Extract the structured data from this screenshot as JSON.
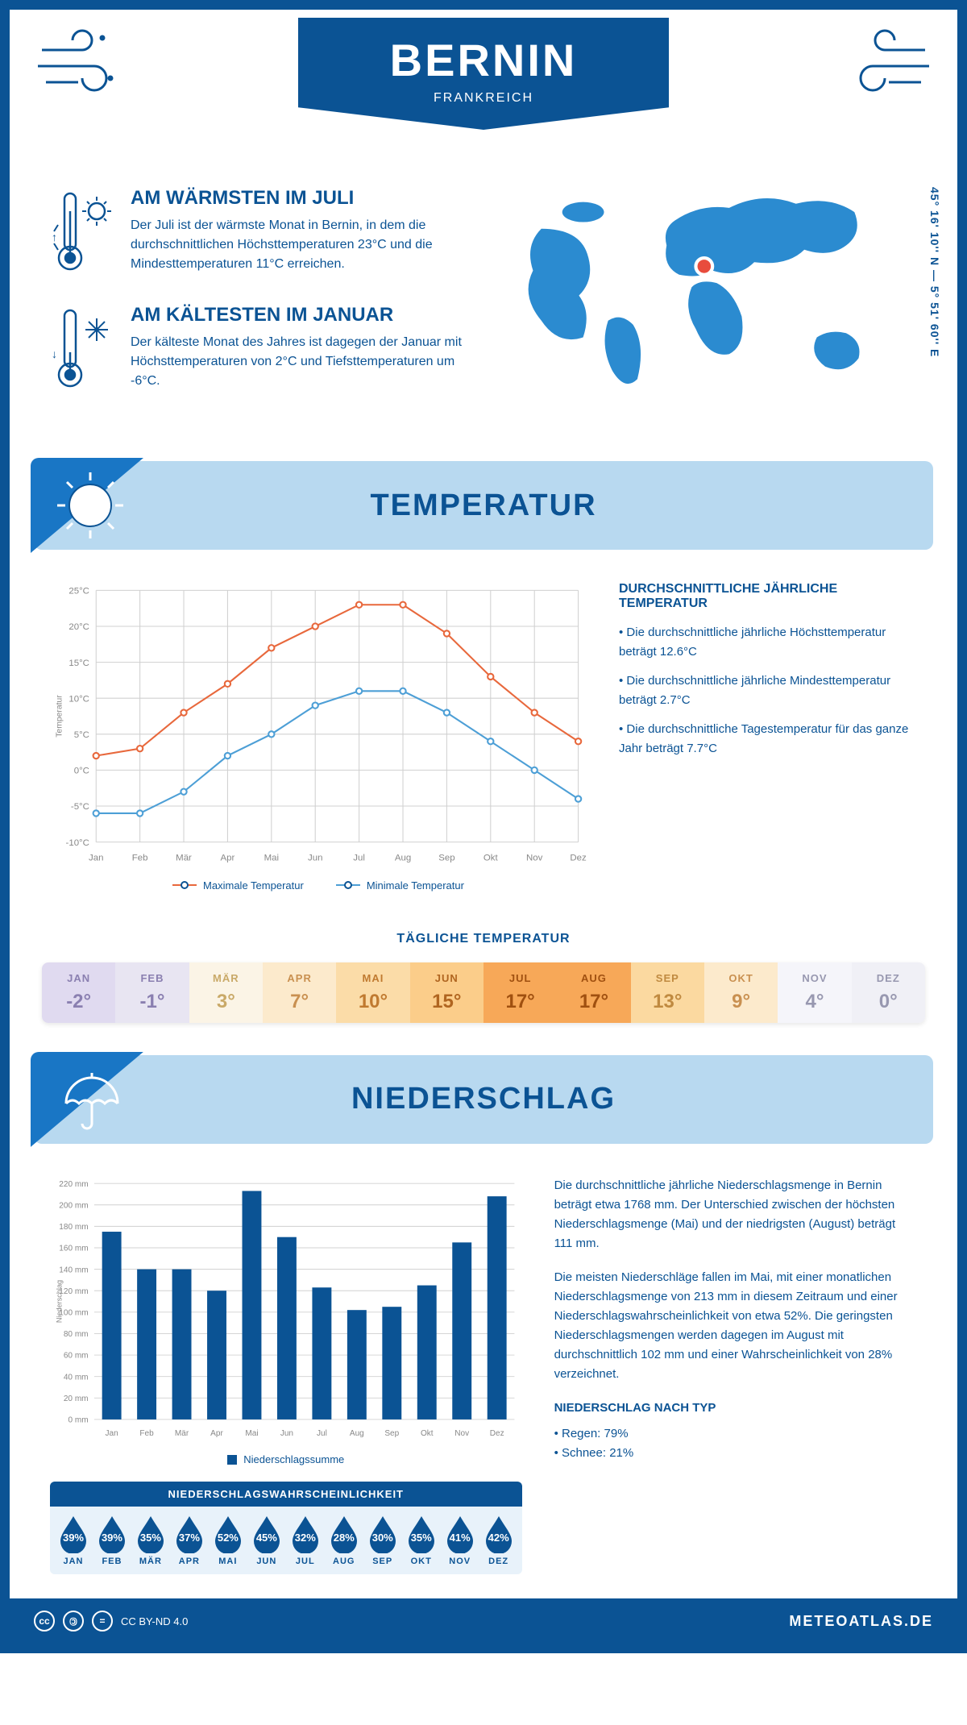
{
  "colors": {
    "primary": "#0b5394",
    "accent": "#1976c5",
    "headerBand": "#b8d9f0",
    "maxLine": "#e8683c",
    "minLine": "#4d9fd6",
    "grid": "#d0d0d0",
    "mapFill": "#2b8bd0",
    "marker": "#e84c3d"
  },
  "header": {
    "city": "BERNIN",
    "country": "FRANKREICH",
    "coords": "45° 16' 10'' N — 5° 51' 60'' E"
  },
  "facts": {
    "warm": {
      "title": "AM WÄRMSTEN IM JULI",
      "text": "Der Juli ist der wärmste Monat in Bernin, in dem die durchschnittlichen Höchsttemperaturen 23°C und die Mindesttemperaturen 11°C erreichen."
    },
    "cold": {
      "title": "AM KÄLTESTEN IM JANUAR",
      "text": "Der kälteste Monat des Jahres ist dagegen der Januar mit Höchsttemperaturen von 2°C und Tiefsttemperaturen um -6°C."
    }
  },
  "sections": {
    "temperature": "TEMPERATUR",
    "precipitation": "NIEDERSCHLAG"
  },
  "tempChart": {
    "type": "line",
    "months": [
      "Jan",
      "Feb",
      "Mär",
      "Apr",
      "Mai",
      "Jun",
      "Jul",
      "Aug",
      "Sep",
      "Okt",
      "Nov",
      "Dez"
    ],
    "max": [
      2,
      3,
      8,
      12,
      17,
      20,
      23,
      23,
      19,
      13,
      8,
      4
    ],
    "min": [
      -6,
      -6,
      -3,
      2,
      5,
      9,
      11,
      11,
      8,
      4,
      0,
      -4
    ],
    "ylim": [
      -10,
      25
    ],
    "ytick_step": 5,
    "ylabel": "Temperatur",
    "legend": {
      "max": "Maximale Temperatur",
      "min": "Minimale Temperatur"
    },
    "label_fontsize": 11,
    "line_width": 2,
    "max_color": "#e8683c",
    "min_color": "#4d9fd6",
    "grid_color": "#d0d0d0",
    "bg": "#ffffff"
  },
  "tempInfo": {
    "title": "DURCHSCHNITTLICHE JÄHRLICHE TEMPERATUR",
    "bullets": [
      "• Die durchschnittliche jährliche Höchsttemperatur beträgt 12.6°C",
      "• Die durchschnittliche jährliche Mindesttemperatur beträgt 2.7°C",
      "• Die durchschnittliche Tagestemperatur für das ganze Jahr beträgt 7.7°C"
    ]
  },
  "dailyTemp": {
    "title": "TÄGLICHE TEMPERATUR",
    "months": [
      "JAN",
      "FEB",
      "MÄR",
      "APR",
      "MAI",
      "JUN",
      "JUL",
      "AUG",
      "SEP",
      "OKT",
      "NOV",
      "DEZ"
    ],
    "values": [
      "-2°",
      "-1°",
      "3°",
      "7°",
      "10°",
      "15°",
      "17°",
      "17°",
      "13°",
      "9°",
      "4°",
      "0°"
    ],
    "cell_bg": [
      "#e0daf0",
      "#e8e5f2",
      "#fbf4e6",
      "#fceacc",
      "#fbdca8",
      "#fbcd8a",
      "#f7a858",
      "#f7a858",
      "#fbd9a0",
      "#fceacc",
      "#f5f5fa",
      "#f0f0f6"
    ],
    "cell_fg": [
      "#8a7fb0",
      "#8a7fb0",
      "#c9a968",
      "#c99050",
      "#c07a30",
      "#b06520",
      "#a05010",
      "#a05010",
      "#c08a40",
      "#c99050",
      "#9898b0",
      "#9898b0"
    ]
  },
  "precipChart": {
    "type": "bar",
    "months": [
      "Jan",
      "Feb",
      "Mär",
      "Apr",
      "Mai",
      "Jun",
      "Jul",
      "Aug",
      "Sep",
      "Okt",
      "Nov",
      "Dez"
    ],
    "values": [
      175,
      140,
      140,
      120,
      213,
      170,
      123,
      102,
      105,
      125,
      165,
      208
    ],
    "ylim": [
      0,
      220
    ],
    "ytick_step": 20,
    "ylabel": "Niederschlag",
    "legend": "Niederschlagssumme",
    "bar_color": "#0b5394",
    "grid_color": "#d0d0d0",
    "bar_width": 0.55
  },
  "precipText": {
    "p1": "Die durchschnittliche jährliche Niederschlagsmenge in Bernin beträgt etwa 1768 mm. Der Unterschied zwischen der höchsten Niederschlagsmenge (Mai) und der niedrigsten (August) beträgt 111 mm.",
    "p2": "Die meisten Niederschläge fallen im Mai, mit einer monatlichen Niederschlagsmenge von 213 mm in diesem Zeitraum und einer Niederschlagswahrscheinlichkeit von etwa 52%. Die geringsten Niederschlagsmengen werden dagegen im August mit durchschnittlich 102 mm und einer Wahrscheinlichkeit von 28% verzeichnet.",
    "typeTitle": "NIEDERSCHLAG NACH TYP",
    "typeRain": "• Regen: 79%",
    "typeSnow": "• Schnee: 21%"
  },
  "precipProb": {
    "title": "NIEDERSCHLAGSWAHRSCHEINLICHKEIT",
    "months": [
      "JAN",
      "FEB",
      "MÄR",
      "APR",
      "MAI",
      "JUN",
      "JUL",
      "AUG",
      "SEP",
      "OKT",
      "NOV",
      "DEZ"
    ],
    "values": [
      "39%",
      "39%",
      "35%",
      "37%",
      "52%",
      "45%",
      "32%",
      "28%",
      "30%",
      "35%",
      "41%",
      "42%"
    ],
    "drop_color": "#0b5394"
  },
  "footer": {
    "license": "CC BY-ND 4.0",
    "site": "METEOATLAS.DE"
  }
}
